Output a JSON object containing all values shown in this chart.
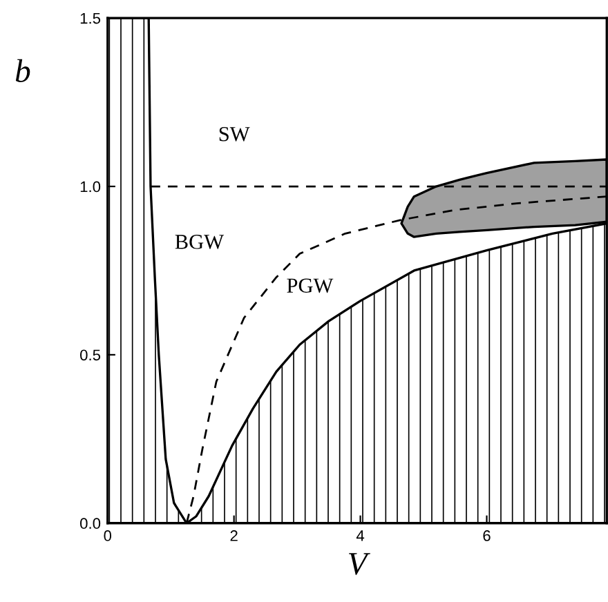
{
  "chart_data": {
    "type": "line",
    "xlabel": "V",
    "ylabel": "b",
    "xlim": [
      0,
      7.9
    ],
    "ylim": [
      0,
      1.5
    ],
    "xticks": [
      0,
      2,
      4,
      6
    ],
    "yticks": [
      {
        "value": 0,
        "label": "0.0"
      },
      0.5,
      {
        "value": 1,
        "label": "1.0"
      },
      1.5
    ],
    "grid": false,
    "legend": false,
    "series": [
      {
        "type": "area",
        "color": "#000000",
        "x": [
          0,
          0.65,
          0.68,
          0.75,
          0.81,
          0.92,
          1.05,
          1.25,
          1.4,
          1.6,
          1.97,
          2.3,
          2.67,
          3.04,
          3.5,
          4.0,
          4.85,
          6.0,
          7.04,
          7.9
        ],
        "values": [
          1.5,
          1.5,
          1.0,
          0.72,
          0.5,
          0.19,
          0.06,
          0,
          0.02,
          0.08,
          0.23,
          0.34,
          0.45,
          0.53,
          0.6,
          0.66,
          0.75,
          0.81,
          0.86,
          0.89
        ]
      },
      {
        "type": "area",
        "color": "#a0a0a0",
        "x": [
          4.65,
          4.75,
          4.85,
          5.2,
          5.57,
          6.0,
          6.75,
          7.4,
          7.9,
          7.9,
          7.4,
          6.75,
          6.0,
          5.57,
          5.2,
          4.85,
          4.75
        ],
        "values": [
          0.89,
          0.94,
          0.97,
          1.0,
          1.02,
          1.04,
          1.07,
          1.075,
          1.08,
          0.895,
          0.885,
          0.88,
          0.87,
          0.865,
          0.86,
          0.85,
          0.86
        ]
      },
      {
        "color": "#000000",
        "line_style": "dashed",
        "x": [
          1.25,
          1.36,
          1.5,
          1.72,
          2.16,
          2.67,
          3.04,
          3.76,
          4.63,
          5.5,
          6.5,
          7.9
        ],
        "values": [
          0,
          0.08,
          0.22,
          0.42,
          0.61,
          0.73,
          0.8,
          0.86,
          0.9,
          0.93,
          0.95,
          0.97
        ]
      },
      {
        "color": "#000000",
        "line_style": "dashed",
        "x": [
          0.68,
          7.9
        ],
        "values": [
          1.0,
          1.0
        ]
      }
    ],
    "annotations": [
      {
        "text": "SW",
        "x": 2.0,
        "y": 1.15
      },
      {
        "text": "BGW",
        "x": 1.45,
        "y": 0.83
      },
      {
        "text": "PGW",
        "x": 3.2,
        "y": 0.7
      }
    ]
  }
}
